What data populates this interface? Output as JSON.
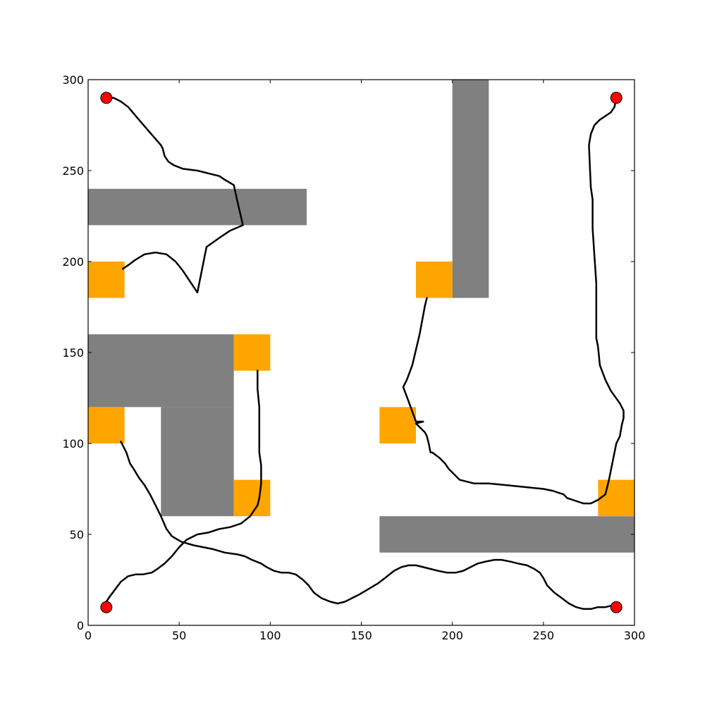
{
  "chart_data": {
    "type": "scatter",
    "xlim": [
      0,
      300
    ],
    "ylim": [
      0,
      300
    ],
    "grid": false,
    "xticks": [
      0,
      50,
      100,
      150,
      200,
      250,
      300
    ],
    "yticks": [
      0,
      50,
      100,
      150,
      200,
      250,
      300
    ],
    "xtick_labels": [
      "0",
      "50",
      "100",
      "150",
      "200",
      "250",
      "300"
    ],
    "ytick_labels": [
      "0",
      "50",
      "100",
      "150",
      "200",
      "250",
      "300"
    ],
    "colors": {
      "obstacle": "#808080",
      "target": "#ffa500",
      "path": "#000000",
      "start": "#ff0000"
    },
    "obstacles": [
      {
        "x0": 0,
        "x1": 120,
        "y0": 220,
        "y1": 240
      },
      {
        "x0": 200,
        "x1": 220,
        "y0": 180,
        "y1": 300
      },
      {
        "x0": 0,
        "x1": 80,
        "y0": 120,
        "y1": 160
      },
      {
        "x0": 40,
        "x1": 80,
        "y0": 60,
        "y1": 120
      },
      {
        "x0": 160,
        "x1": 300,
        "y0": 40,
        "y1": 60
      }
    ],
    "targets": [
      {
        "x0": 0,
        "x1": 20,
        "y0": 180,
        "y1": 200
      },
      {
        "x0": 180,
        "x1": 200,
        "y0": 180,
        "y1": 200
      },
      {
        "x0": 80,
        "x1": 100,
        "y0": 140,
        "y1": 160
      },
      {
        "x0": 0,
        "x1": 20,
        "y0": 100,
        "y1": 120
      },
      {
        "x0": 160,
        "x1": 180,
        "y0": 100,
        "y1": 120
      },
      {
        "x0": 80,
        "x1": 100,
        "y0": 60,
        "y1": 80
      },
      {
        "x0": 280,
        "x1": 300,
        "y0": 60,
        "y1": 80
      }
    ],
    "starts": [
      {
        "x": 10,
        "y": 290
      },
      {
        "x": 290,
        "y": 290
      },
      {
        "x": 10,
        "y": 10
      },
      {
        "x": 290,
        "y": 10
      }
    ],
    "paths": [
      {
        "points": [
          [
            10,
            290
          ],
          [
            14,
            290
          ],
          [
            18,
            288
          ],
          [
            22,
            285
          ],
          [
            27,
            279
          ],
          [
            33,
            272
          ],
          [
            40,
            264
          ],
          [
            41,
            262
          ],
          [
            42,
            258
          ],
          [
            44,
            255
          ],
          [
            47,
            253
          ],
          [
            52,
            251
          ],
          [
            60,
            250
          ],
          [
            68,
            248
          ],
          [
            72,
            247
          ],
          [
            75,
            245
          ],
          [
            80,
            242
          ],
          [
            82,
            233
          ],
          [
            85,
            220
          ],
          [
            78,
            217
          ],
          [
            72,
            213
          ],
          [
            65,
            208
          ],
          [
            60,
            183
          ],
          [
            52,
            195
          ],
          [
            48,
            200
          ],
          [
            43,
            204
          ],
          [
            37,
            205
          ],
          [
            31,
            204
          ],
          [
            26,
            201
          ],
          [
            22,
            198
          ],
          [
            19,
            196
          ]
        ]
      },
      {
        "points": [
          [
            290,
            290
          ],
          [
            289,
            285
          ],
          [
            287,
            282
          ],
          [
            284,
            280
          ],
          [
            281,
            278
          ],
          [
            278,
            275
          ],
          [
            276,
            270
          ],
          [
            275,
            264
          ],
          [
            276,
            241
          ],
          [
            277,
            234
          ],
          [
            277,
            218
          ],
          [
            279,
            188
          ],
          [
            279,
            162
          ],
          [
            279,
            158
          ],
          [
            280,
            153
          ],
          [
            281,
            143
          ],
          [
            284,
            135
          ],
          [
            287,
            129
          ],
          [
            292,
            122
          ],
          [
            294,
            118
          ],
          [
            294,
            114
          ],
          [
            293,
            110
          ],
          [
            292,
            104
          ],
          [
            290,
            100
          ],
          [
            288,
            90
          ],
          [
            286,
            80
          ],
          [
            284,
            72
          ],
          [
            280,
            69
          ],
          [
            276,
            67
          ],
          [
            272,
            67
          ],
          [
            269,
            68
          ],
          [
            266,
            69
          ],
          [
            263,
            70
          ],
          [
            261,
            72
          ],
          [
            258,
            73
          ],
          [
            255,
            74
          ],
          [
            250,
            75
          ],
          [
            240,
            76
          ],
          [
            230,
            77
          ],
          [
            220,
            78
          ],
          [
            212,
            78
          ],
          [
            208,
            79
          ],
          [
            204,
            80
          ],
          [
            202,
            82
          ],
          [
            200,
            84
          ],
          [
            198,
            86
          ],
          [
            196,
            89
          ],
          [
            193,
            92
          ],
          [
            189,
            95
          ],
          [
            188,
            95
          ],
          [
            187,
            100
          ],
          [
            186,
            104
          ],
          [
            185,
            106
          ],
          [
            183,
            108
          ],
          [
            180,
            111
          ],
          [
            184,
            112
          ],
          [
            180,
            112
          ],
          [
            176,
            123
          ],
          [
            173,
            131
          ],
          [
            175,
            135
          ],
          [
            178,
            143
          ],
          [
            182,
            160
          ],
          [
            185,
            176
          ],
          [
            186,
            180
          ]
        ]
      },
      {
        "points": [
          [
            18,
            101
          ],
          [
            21,
            95
          ],
          [
            23,
            89
          ],
          [
            25,
            86
          ],
          [
            28,
            81
          ],
          [
            31,
            77
          ],
          [
            34,
            72
          ],
          [
            37,
            66
          ],
          [
            40,
            60
          ],
          [
            43,
            53
          ],
          [
            46,
            49
          ],
          [
            51,
            46
          ],
          [
            58,
            44
          ],
          [
            68,
            42
          ],
          [
            75,
            40
          ],
          [
            82,
            39
          ],
          [
            86,
            38
          ],
          [
            90,
            36
          ],
          [
            95,
            34
          ],
          [
            98,
            32
          ],
          [
            102,
            30
          ],
          [
            106,
            29
          ],
          [
            110,
            29
          ],
          [
            114,
            28
          ],
          [
            118,
            25
          ],
          [
            121,
            22
          ],
          [
            124,
            18
          ],
          [
            128,
            15
          ],
          [
            133,
            13
          ],
          [
            137,
            12
          ],
          [
            141,
            13
          ],
          [
            145,
            15
          ],
          [
            149,
            17
          ],
          [
            154,
            20
          ],
          [
            159,
            23
          ],
          [
            163,
            26
          ],
          [
            168,
            30
          ],
          [
            172,
            32
          ],
          [
            176,
            33
          ],
          [
            180,
            33
          ],
          [
            184,
            32
          ],
          [
            188,
            31
          ],
          [
            192,
            30
          ],
          [
            197,
            29
          ],
          [
            202,
            29
          ],
          [
            206,
            30
          ],
          [
            210,
            32
          ],
          [
            214,
            34
          ],
          [
            218,
            35
          ],
          [
            223,
            36
          ],
          [
            227,
            36
          ],
          [
            232,
            35
          ],
          [
            236,
            34
          ],
          [
            241,
            33
          ],
          [
            245,
            31
          ],
          [
            248,
            29
          ],
          [
            250,
            26
          ],
          [
            252,
            22
          ],
          [
            256,
            18
          ],
          [
            260,
            15
          ],
          [
            264,
            12
          ],
          [
            268,
            10
          ],
          [
            272,
            9
          ],
          [
            276,
            9
          ],
          [
            280,
            10
          ],
          [
            284,
            10
          ],
          [
            288,
            11
          ]
        ]
      },
      {
        "points": [
          [
            10,
            10
          ],
          [
            10,
            13
          ],
          [
            12,
            16
          ],
          [
            15,
            20
          ],
          [
            18,
            24
          ],
          [
            22,
            27
          ],
          [
            26,
            28
          ],
          [
            30,
            28
          ],
          [
            35,
            29
          ],
          [
            38,
            31
          ],
          [
            42,
            34
          ],
          [
            46,
            38
          ],
          [
            50,
            43
          ],
          [
            54,
            47
          ],
          [
            60,
            50
          ],
          [
            66,
            51
          ],
          [
            72,
            53
          ],
          [
            78,
            54
          ],
          [
            84,
            56
          ],
          [
            89,
            60
          ],
          [
            93,
            66
          ],
          [
            94,
            70
          ],
          [
            95,
            78
          ],
          [
            95,
            88
          ],
          [
            94,
            95
          ],
          [
            94,
            100
          ],
          [
            94,
            110
          ],
          [
            94,
            120
          ],
          [
            93,
            130
          ],
          [
            93,
            136
          ],
          [
            93,
            140
          ]
        ]
      }
    ]
  }
}
